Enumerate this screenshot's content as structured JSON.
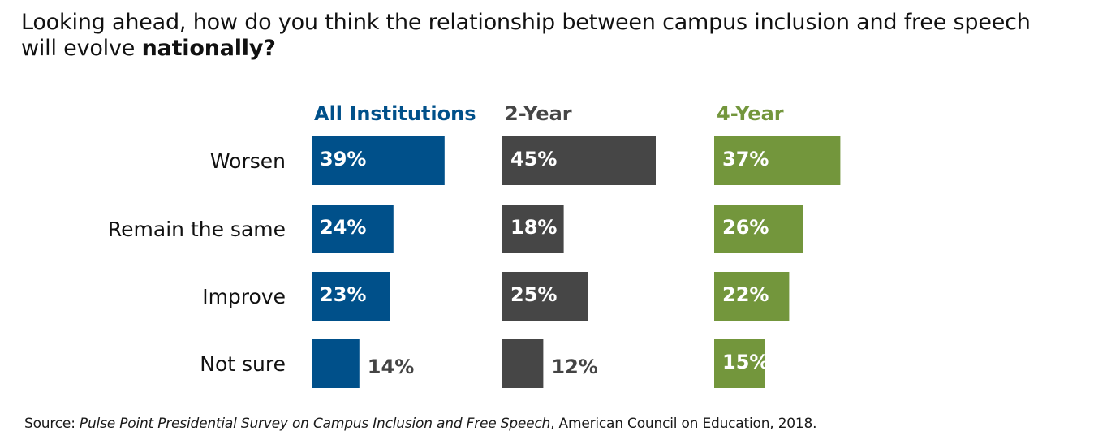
{
  "title": {
    "line1": "Looking ahead, how do you think the relationship between campus inclusion and free speech",
    "line2_prefix": "will evolve ",
    "line2_bold": "nationally?"
  },
  "source": {
    "prefix": "Source: ",
    "italic": "Pulse Point Presidential Survey on Campus Inclusion and Free Speech",
    "suffix": ", American Council on Education, 2018."
  },
  "chart_data": {
    "type": "bar",
    "orientation": "horizontal",
    "layout": "small-multiples",
    "categories": [
      "Worsen",
      "Remain the same",
      "Improve",
      "Not sure"
    ],
    "series": [
      {
        "name": "All Institutions",
        "color": "#00508a",
        "values": [
          39,
          24,
          23,
          14
        ],
        "labels": [
          "39%",
          "24%",
          "23%",
          "14%"
        ]
      },
      {
        "name": "2-Year",
        "color": "#464646",
        "values": [
          45,
          18,
          25,
          12
        ],
        "labels": [
          "45%",
          "18%",
          "25%",
          "12%"
        ]
      },
      {
        "name": "4-Year",
        "color": "#73963c",
        "values": [
          37,
          26,
          22,
          15
        ],
        "labels": [
          "37%",
          "26%",
          "22%",
          "15%"
        ]
      }
    ],
    "unit": "%",
    "xlim": [
      0,
      100
    ],
    "grid": false,
    "legend": "none"
  }
}
